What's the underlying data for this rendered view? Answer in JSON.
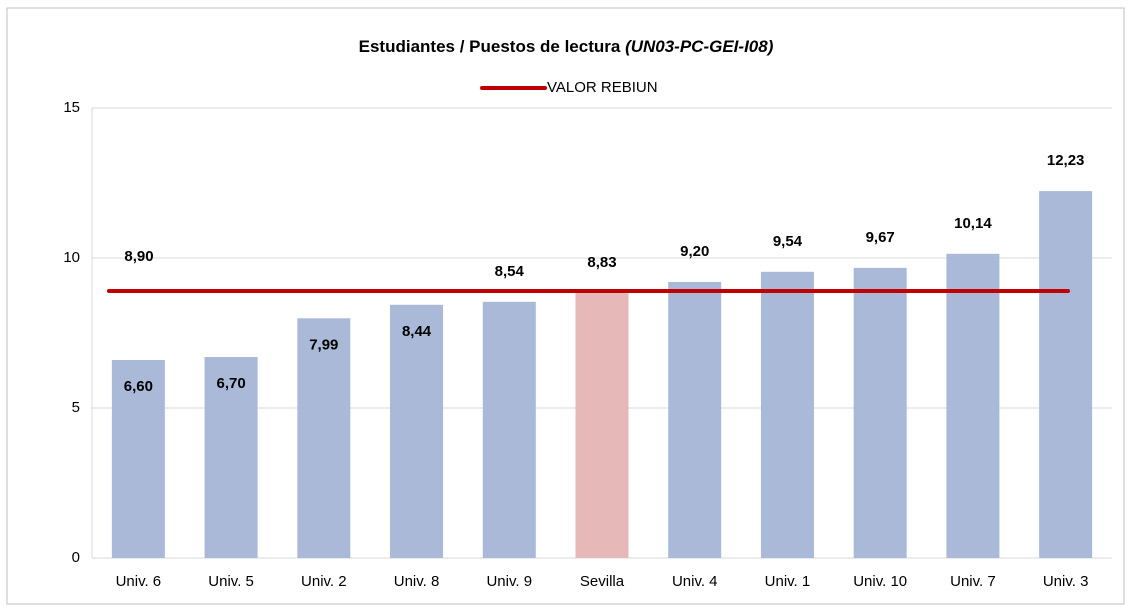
{
  "chart_data": {
    "type": "bar",
    "title": "Estudiantes / Puestos de lectura",
    "title_code": "(UN03-PC-GEI-I08)",
    "categories": [
      "Univ. 6",
      "Univ. 5",
      "Univ. 2",
      "Univ. 8",
      "Univ. 9",
      "Sevilla",
      "Univ. 4",
      "Univ. 1",
      "Univ. 10",
      "Univ. 7",
      "Univ. 3"
    ],
    "values": [
      6.6,
      6.7,
      7.99,
      8.44,
      8.54,
      8.83,
      9.2,
      9.54,
      9.67,
      10.14,
      12.23
    ],
    "value_labels": [
      "6,60",
      "6,70",
      "7,99",
      "8,44",
      "8,54",
      "8,83",
      "9,20",
      "9,54",
      "9,67",
      "10,14",
      "12,23"
    ],
    "colors": [
      "#a9b9d7",
      "#a9b9d7",
      "#a9b9d7",
      "#a9b9d7",
      "#a9b9d7",
      "#e6b8b7",
      "#a9b9d7",
      "#a9b9d7",
      "#a9b9d7",
      "#a9b9d7",
      "#a9b9d7"
    ],
    "reference": {
      "name": "VALOR REBIUN",
      "value": 8.9,
      "value_label": "8,90",
      "color": "#c00000"
    },
    "ylim": [
      0,
      15
    ],
    "yticks": [
      0,
      5,
      10,
      15
    ],
    "grid": true
  }
}
